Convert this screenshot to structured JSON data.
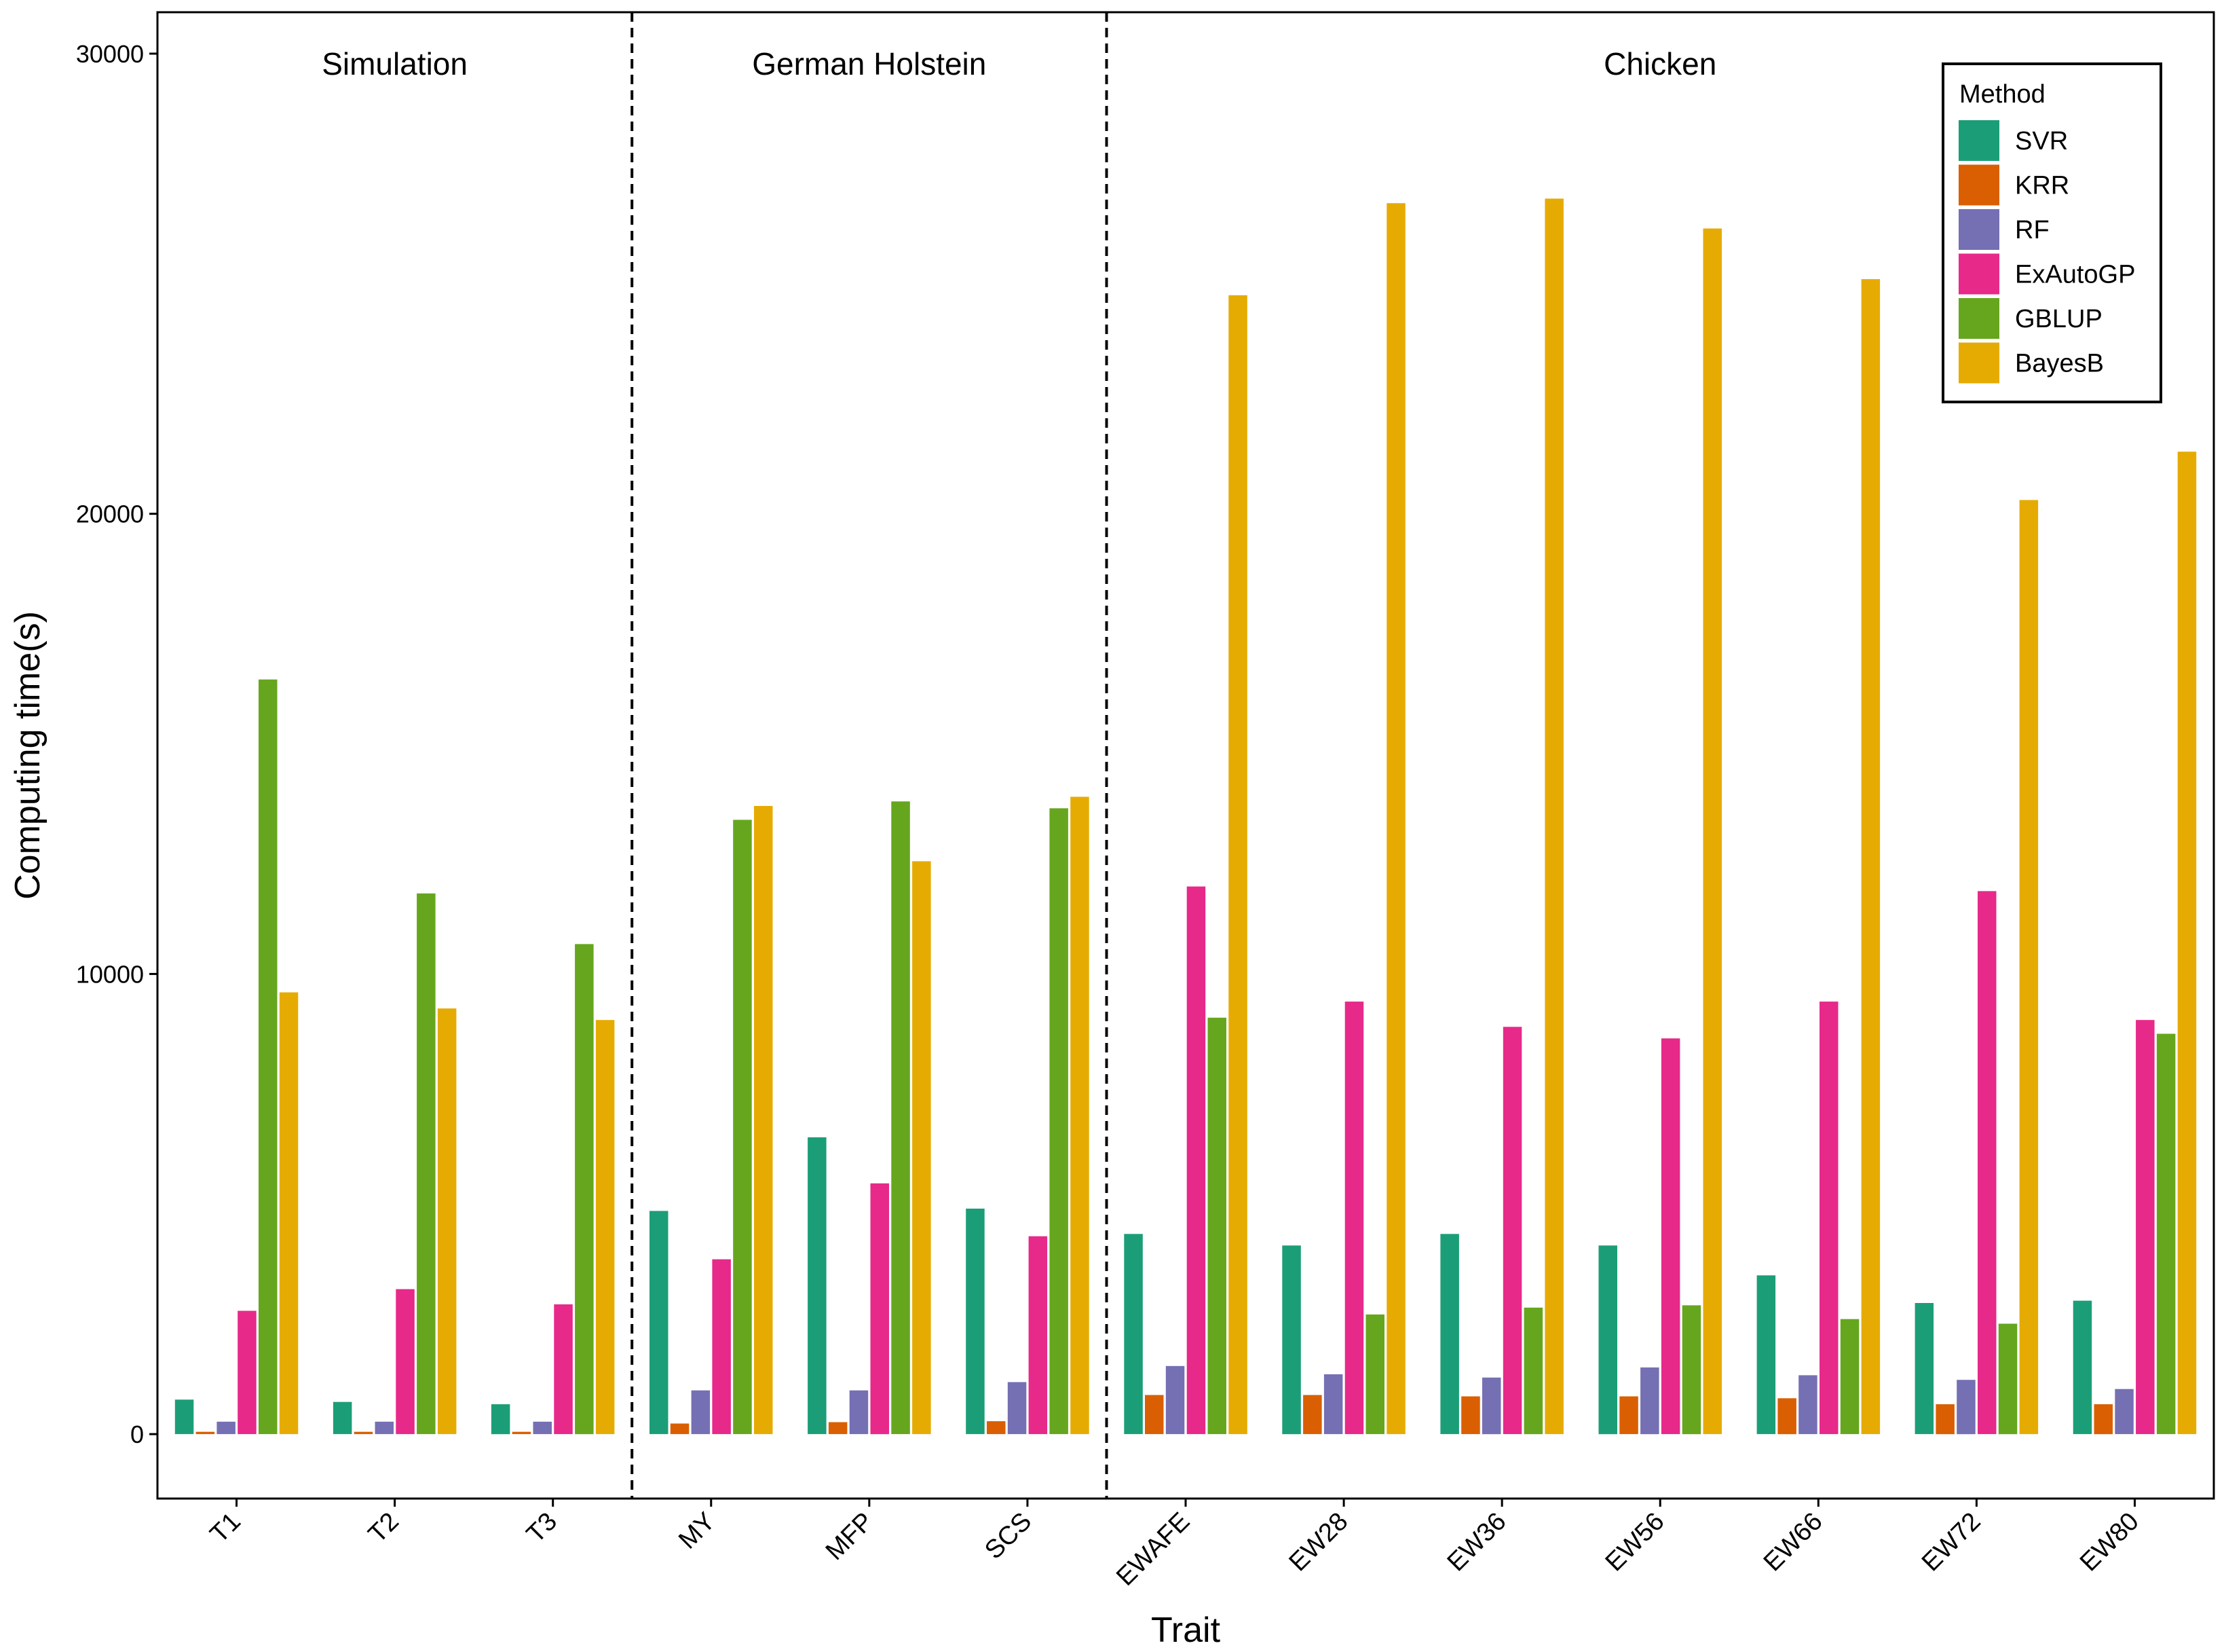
{
  "chart_data": {
    "type": "bar",
    "xlabel": "Trait",
    "ylabel": "Computing time(s)",
    "ylim": [
      -1400,
      30900
    ],
    "yticks": [
      0,
      10000,
      20000,
      30000
    ],
    "ytick_labels": [
      "0",
      "10000",
      "20000",
      "30000"
    ],
    "grid": false,
    "legend": {
      "title": "Method",
      "position": "top-right"
    },
    "categories": [
      "T1",
      "T2",
      "T3",
      "MY",
      "MFP",
      "SCS",
      "EWAFE",
      "EW28",
      "EW36",
      "EW56",
      "EW66",
      "EW72",
      "EW80"
    ],
    "groups": [
      {
        "name": "Simulation",
        "categories": [
          "T1",
          "T2",
          "T3"
        ]
      },
      {
        "name": "German Holstein",
        "categories": [
          "MY",
          "MFP",
          "SCS"
        ]
      },
      {
        "name": "Chicken",
        "categories": [
          "EWAFE",
          "EW28",
          "EW36",
          "EW56",
          "EW66",
          "EW72",
          "EW80"
        ]
      }
    ],
    "series": [
      {
        "name": "SVR",
        "color": "#1b9e77",
        "values": [
          750,
          700,
          650,
          4850,
          6450,
          4900,
          4350,
          4100,
          4350,
          4100,
          3450,
          2850,
          2900
        ]
      },
      {
        "name": "KRR",
        "color": "#d95f02",
        "values": [
          50,
          50,
          50,
          230,
          260,
          280,
          850,
          850,
          820,
          820,
          780,
          650,
          650
        ]
      },
      {
        "name": "RF",
        "color": "#7570b3",
        "values": [
          270,
          270,
          270,
          950,
          950,
          1130,
          1480,
          1300,
          1230,
          1450,
          1280,
          1180,
          980
        ]
      },
      {
        "name": "ExAutoGP",
        "color": "#e7298a",
        "values": [
          2680,
          3150,
          2820,
          3800,
          5450,
          4300,
          11900,
          9400,
          8850,
          8600,
          9400,
          11800,
          9000
        ]
      },
      {
        "name": "GBLUP",
        "color": "#66a61e",
        "values": [
          16400,
          11750,
          10650,
          13350,
          13750,
          13600,
          9050,
          2600,
          2750,
          2800,
          2500,
          2400,
          8700
        ]
      },
      {
        "name": "BayesB",
        "color": "#e6ab02",
        "values": [
          9600,
          9250,
          9000,
          13650,
          12450,
          13850,
          24750,
          26750,
          26850,
          26200,
          25100,
          20300,
          21350
        ]
      }
    ]
  }
}
